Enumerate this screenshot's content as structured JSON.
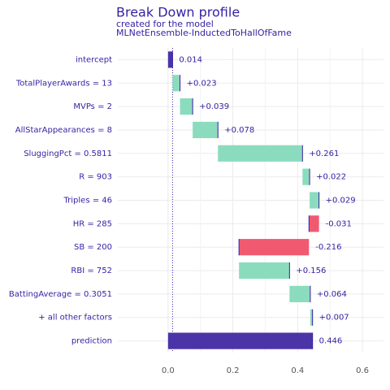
{
  "chart_data": {
    "type": "waterfall",
    "title": "Break Down profile",
    "subtitle": "created for the  model",
    "model": "MLNetEnsemble-InductedToHallOfFame",
    "categories": [
      "intercept",
      "TotalPlayerAwards = 13",
      "MVPs = 2",
      "AllStarAppearances = 8",
      "SluggingPct = 0.5811",
      "R = 903",
      "Triples = 46",
      "HR = 285",
      "SB = 200",
      "RBI = 752",
      "BattingAverage = 0.3051",
      "+ all other factors",
      "prediction"
    ],
    "values": [
      0.014,
      0.023,
      0.039,
      0.078,
      0.261,
      0.022,
      0.029,
      -0.031,
      -0.216,
      0.156,
      0.064,
      0.007,
      0.446
    ],
    "value_labels": [
      "0.014",
      "+0.023",
      "+0.039",
      "+0.078",
      "+0.261",
      "+0.022",
      "+0.029",
      "-0.031",
      "-0.216",
      "+0.156",
      "+0.064",
      "+0.007",
      "0.446"
    ],
    "colors": {
      "positive": "#8bdcbe",
      "negative": "#f05a71",
      "total": "#4b34a8",
      "connector": "#371ea3"
    },
    "xlim": [
      -0.155,
      0.665
    ],
    "xticks": [
      {
        "value": 0,
        "label": "0.0"
      },
      0.2,
      0.4,
      0.6
    ],
    "grid": true
  }
}
